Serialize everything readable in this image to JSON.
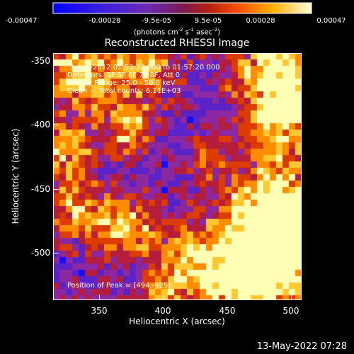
{
  "colorbar": {
    "tick_labels": [
      "-0.00047",
      "-0.00028",
      "-9.5e-05",
      "9.5e-05",
      "0.00028",
      "0.00047"
    ],
    "units_text": "(photons cm",
    "units_sup1": "-2",
    "units_mid": " s",
    "units_sup2": "-1",
    "units_mid2": " asec",
    "units_sup3": "-2",
    "units_end": ")",
    "range": [
      -0.00047,
      0.00047
    ]
  },
  "plot": {
    "title": "Reconstructed RHESSI Image",
    "annotation_time": " 3-Aug-2012 01:53:32.000 to 01:57:20.000",
    "annotation_detectors": "Detectors: 3F 5F 6F 7F 8F, Att 0",
    "annotation_energy": "Energy Range: 25.0 - 50.0 keV",
    "annotation_clean": "Clean     Total counts: 6.11E+03",
    "annotation_peak": "Position of Peak = [494,-525]",
    "xlabel": "Heliocentric X (arcsec)",
    "ylabel": "Heliocentric Y (arcsec)",
    "x_ticks": [
      "350",
      "400",
      "450",
      "500"
    ],
    "y_ticks": [
      "-350",
      "-400",
      "-450",
      "-500"
    ]
  },
  "chart_data": {
    "type": "heatmap",
    "title": "Reconstructed RHESSI Image",
    "xlabel": "Heliocentric X (arcsec)",
    "ylabel": "Heliocentric Y (arcsec)",
    "xlim": [
      315,
      505
    ],
    "ylim": [
      -537,
      -345
    ],
    "colorbar_range": [
      -0.00047,
      0.00047
    ],
    "peak": [
      494,
      -525
    ],
    "colors": [
      "#1010ff",
      "#5a23c8",
      "#8c28a0",
      "#b41e3c",
      "#dc3c00",
      "#ff8c00",
      "#ffc832",
      "#ffffb4"
    ]
  },
  "footer": {
    "date": "13-May-2022 07:28"
  }
}
